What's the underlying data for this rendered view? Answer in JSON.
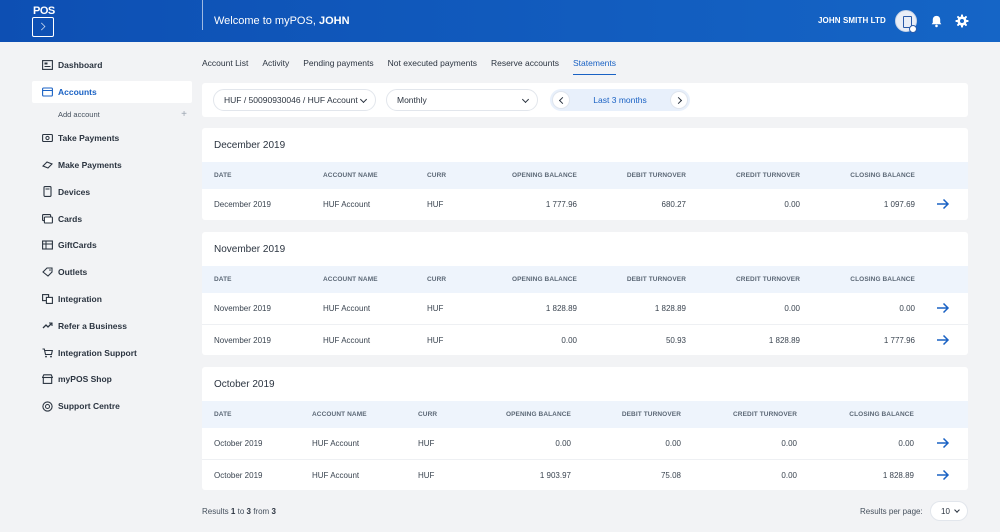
{
  "header": {
    "logo_text": "POS",
    "welcome_prefix": "Welcome to myPOS,",
    "user_name": "JOHN",
    "company": "JOHN SMITH LTD"
  },
  "sidebar": {
    "items": [
      {
        "label": "Dashboard",
        "icon": "dashboard-icon"
      },
      {
        "label": "Accounts",
        "icon": "wallet-icon"
      },
      {
        "label": "Take Payments",
        "icon": "take-payments-icon"
      },
      {
        "label": "Make Payments",
        "icon": "make-payments-icon"
      },
      {
        "label": "Devices",
        "icon": "device-icon"
      },
      {
        "label": "Cards",
        "icon": "cards-icon"
      },
      {
        "label": "GiftCards",
        "icon": "giftcard-icon"
      },
      {
        "label": "Outlets",
        "icon": "tag-icon"
      },
      {
        "label": "Integration",
        "icon": "integration-icon"
      },
      {
        "label": "Refer a Business",
        "icon": "refer-icon"
      },
      {
        "label": "Integration Support",
        "icon": "cart-icon"
      },
      {
        "label": "myPOS Shop",
        "icon": "shop-icon"
      },
      {
        "label": "Support Centre",
        "icon": "support-icon"
      }
    ],
    "sub_item": "Add account",
    "sub_plus": "+"
  },
  "tabs": [
    "Account List",
    "Activity",
    "Pending payments",
    "Not executed payments",
    "Reserve accounts",
    "Statements"
  ],
  "filters": {
    "account": "HUF / 50090930046 / HUF Account",
    "frequency": "Monthly",
    "period": "Last 3 months"
  },
  "columns": [
    "DATE",
    "ACCOUNT NAME",
    "CURR",
    "OPENING BALANCE",
    "DEBIT TURNOVER",
    "CREDIT TURNOVER",
    "CLOSING BALANCE"
  ],
  "statements": [
    {
      "title": "December 2019",
      "rows": [
        [
          "December 2019",
          "HUF Account",
          "HUF",
          "1 777.96",
          "680.27",
          "0.00",
          "1 097.69"
        ]
      ]
    },
    {
      "title": "November 2019",
      "rows": [
        [
          "November 2019",
          "HUF Account",
          "HUF",
          "1 828.89",
          "1 828.89",
          "0.00",
          "0.00"
        ],
        [
          "November 2019",
          "HUF Account",
          "HUF",
          "0.00",
          "50.93",
          "1 828.89",
          "1 777.96"
        ]
      ]
    },
    {
      "title": "October 2019",
      "rows": [
        [
          "October 2019",
          "HUF Account",
          "HUF",
          "0.00",
          "0.00",
          "0.00",
          "0.00"
        ],
        [
          "October 2019",
          "HUF Account",
          "HUF",
          "1 903.97",
          "75.08",
          "0.00",
          "1 828.89"
        ]
      ]
    }
  ],
  "footer": {
    "results_prefix": "Results",
    "results_from": "1",
    "results_to_word": "to",
    "results_to": "3",
    "results_from_word": "from",
    "results_total": "3",
    "per_page_label": "Results per page:",
    "per_page_value": "10"
  },
  "colors": {
    "brand": "#1565c6",
    "accent": "#1a62c4",
    "table_header_bg": "#eef4fc"
  }
}
